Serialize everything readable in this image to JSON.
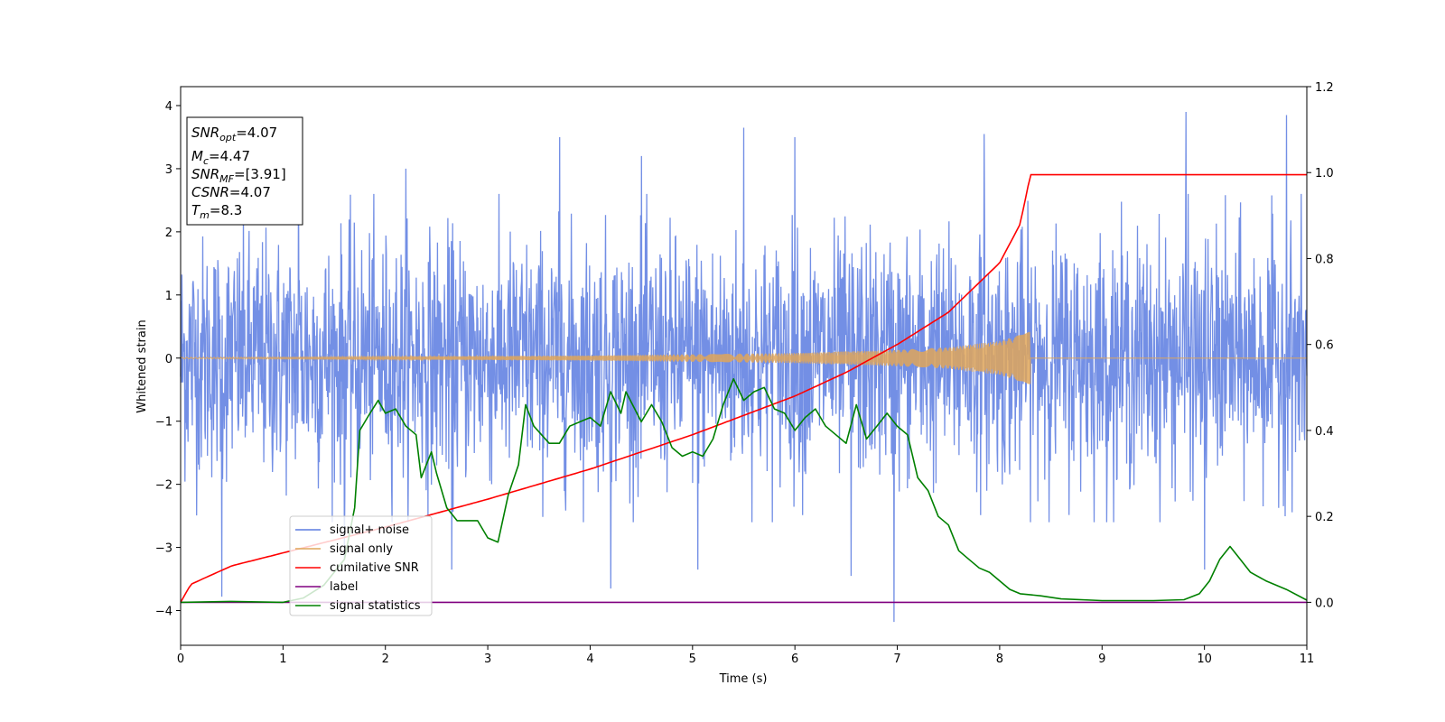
{
  "chart_data": {
    "type": "line",
    "xlabel": "Time (s)",
    "ylabel": "Whitened strain",
    "xlim": [
      0,
      11
    ],
    "ylim_left": [
      -4.55,
      4.3
    ],
    "ylim_right": [
      -0.1,
      1.2
    ],
    "x_ticks": [
      "0",
      "1",
      "2",
      "3",
      "4",
      "5",
      "6",
      "7",
      "8",
      "9",
      "10",
      "11"
    ],
    "y_ticks_left": [
      "4",
      "3",
      "2",
      "1",
      "0",
      "−1",
      "−2",
      "−3",
      "−4"
    ],
    "y_ticks_right": [
      "1.2",
      "1.0",
      "0.8",
      "0.6",
      "0.4",
      "0.2",
      "0.0"
    ],
    "grid": false,
    "legend_location": "lower-left",
    "info_box": {
      "snr_opt": {
        "main": "SNR",
        "sub": "opt",
        "value": "=4.07"
      },
      "mc": {
        "main": "M",
        "sub": "c",
        "value": "=4.47"
      },
      "snr_mf": {
        "main": "SNR",
        "sub": "MF",
        "value": "=[3.91]"
      },
      "csnr": {
        "main": "CSNR",
        "sub": "",
        "value": "=4.07"
      },
      "tm": {
        "main": "T",
        "sub": "m",
        "value": "=8.3"
      }
    },
    "series": [
      {
        "name": "signal+ noise",
        "axis": "left",
        "color": "#5b7be0",
        "style": "dense noise trace, roughly within ±2.5 with spikes reaching about ±4",
        "spikes": [
          [
            0.4,
            -3.78
          ],
          [
            1.15,
            3.1
          ],
          [
            1.6,
            3.9
          ],
          [
            1.6,
            -3.2
          ],
          [
            2.2,
            3.0
          ],
          [
            2.65,
            -3.35
          ],
          [
            3.7,
            3.5
          ],
          [
            4.2,
            -3.65
          ],
          [
            4.5,
            3.2
          ],
          [
            5.05,
            -3.35
          ],
          [
            5.5,
            3.65
          ],
          [
            6.0,
            3.5
          ],
          [
            6.55,
            -3.45
          ],
          [
            6.97,
            -4.18
          ],
          [
            7.85,
            3.55
          ],
          [
            9.82,
            3.9
          ],
          [
            10.0,
            -3.35
          ],
          [
            10.8,
            3.85
          ]
        ]
      },
      {
        "name": "signal only",
        "axis": "left",
        "color": "#dfa65a",
        "style": "chirp with envelope growing until merger time",
        "merger_time": 8.3,
        "amplitude_points": [
          [
            0,
            0.01
          ],
          [
            2,
            0.02
          ],
          [
            4,
            0.04
          ],
          [
            6,
            0.08
          ],
          [
            7,
            0.13
          ],
          [
            7.5,
            0.17
          ],
          [
            8.0,
            0.27
          ],
          [
            8.3,
            0.42
          ]
        ]
      },
      {
        "name": "cumilative SNR",
        "axis": "right",
        "color": "#ff0000",
        "points": [
          [
            0.0,
            0.0
          ],
          [
            0.1,
            0.042
          ],
          [
            0.5,
            0.085
          ],
          [
            1.0,
            0.115
          ],
          [
            2.0,
            0.175
          ],
          [
            3.0,
            0.24
          ],
          [
            4.0,
            0.31
          ],
          [
            5.0,
            0.39
          ],
          [
            6.0,
            0.48
          ],
          [
            6.5,
            0.535
          ],
          [
            7.0,
            0.6
          ],
          [
            7.5,
            0.675
          ],
          [
            8.0,
            0.79
          ],
          [
            8.2,
            0.88
          ],
          [
            8.3,
            0.995
          ],
          [
            11.0,
            0.995
          ]
        ]
      },
      {
        "name": "label",
        "axis": "right",
        "color": "#800080",
        "points": [
          [
            0.0,
            0.0
          ],
          [
            11.0,
            0.0
          ]
        ]
      },
      {
        "name": "signal statistics",
        "axis": "right",
        "color": "#008000",
        "points": [
          [
            0.0,
            0.0
          ],
          [
            0.5,
            0.002
          ],
          [
            1.0,
            0.0
          ],
          [
            1.2,
            0.01
          ],
          [
            1.4,
            0.04
          ],
          [
            1.6,
            0.1
          ],
          [
            1.7,
            0.22
          ],
          [
            1.75,
            0.4
          ],
          [
            1.85,
            0.44
          ],
          [
            1.93,
            0.47
          ],
          [
            2.0,
            0.44
          ],
          [
            2.1,
            0.45
          ],
          [
            2.2,
            0.41
          ],
          [
            2.3,
            0.39
          ],
          [
            2.35,
            0.29
          ],
          [
            2.45,
            0.35
          ],
          [
            2.5,
            0.3
          ],
          [
            2.6,
            0.22
          ],
          [
            2.7,
            0.19
          ],
          [
            2.8,
            0.19
          ],
          [
            2.9,
            0.19
          ],
          [
            3.0,
            0.15
          ],
          [
            3.1,
            0.14
          ],
          [
            3.2,
            0.25
          ],
          [
            3.3,
            0.32
          ],
          [
            3.37,
            0.46
          ],
          [
            3.45,
            0.41
          ],
          [
            3.6,
            0.37
          ],
          [
            3.7,
            0.37
          ],
          [
            3.8,
            0.41
          ],
          [
            3.9,
            0.42
          ],
          [
            4.0,
            0.43
          ],
          [
            4.1,
            0.41
          ],
          [
            4.2,
            0.49
          ],
          [
            4.3,
            0.44
          ],
          [
            4.35,
            0.49
          ],
          [
            4.5,
            0.42
          ],
          [
            4.6,
            0.46
          ],
          [
            4.7,
            0.42
          ],
          [
            4.8,
            0.36
          ],
          [
            4.9,
            0.34
          ],
          [
            5.0,
            0.35
          ],
          [
            5.1,
            0.34
          ],
          [
            5.2,
            0.38
          ],
          [
            5.3,
            0.46
          ],
          [
            5.4,
            0.52
          ],
          [
            5.5,
            0.47
          ],
          [
            5.6,
            0.49
          ],
          [
            5.7,
            0.5
          ],
          [
            5.8,
            0.45
          ],
          [
            5.9,
            0.44
          ],
          [
            6.0,
            0.4
          ],
          [
            6.1,
            0.43
          ],
          [
            6.2,
            0.45
          ],
          [
            6.3,
            0.41
          ],
          [
            6.4,
            0.39
          ],
          [
            6.5,
            0.37
          ],
          [
            6.6,
            0.46
          ],
          [
            6.7,
            0.38
          ],
          [
            6.8,
            0.41
          ],
          [
            6.9,
            0.44
          ],
          [
            7.0,
            0.41
          ],
          [
            7.1,
            0.39
          ],
          [
            7.2,
            0.29
          ],
          [
            7.3,
            0.26
          ],
          [
            7.4,
            0.2
          ],
          [
            7.5,
            0.18
          ],
          [
            7.6,
            0.12
          ],
          [
            7.7,
            0.1
          ],
          [
            7.8,
            0.08
          ],
          [
            7.9,
            0.07
          ],
          [
            8.0,
            0.05
          ],
          [
            8.1,
            0.03
          ],
          [
            8.2,
            0.02
          ],
          [
            8.4,
            0.015
          ],
          [
            8.6,
            0.008
          ],
          [
            9.0,
            0.004
          ],
          [
            9.5,
            0.004
          ],
          [
            9.8,
            0.006
          ],
          [
            9.95,
            0.02
          ],
          [
            10.05,
            0.05
          ],
          [
            10.15,
            0.1
          ],
          [
            10.25,
            0.13
          ],
          [
            10.35,
            0.1
          ],
          [
            10.45,
            0.07
          ],
          [
            10.6,
            0.05
          ],
          [
            10.8,
            0.03
          ],
          [
            11.0,
            0.005
          ]
        ]
      }
    ]
  }
}
